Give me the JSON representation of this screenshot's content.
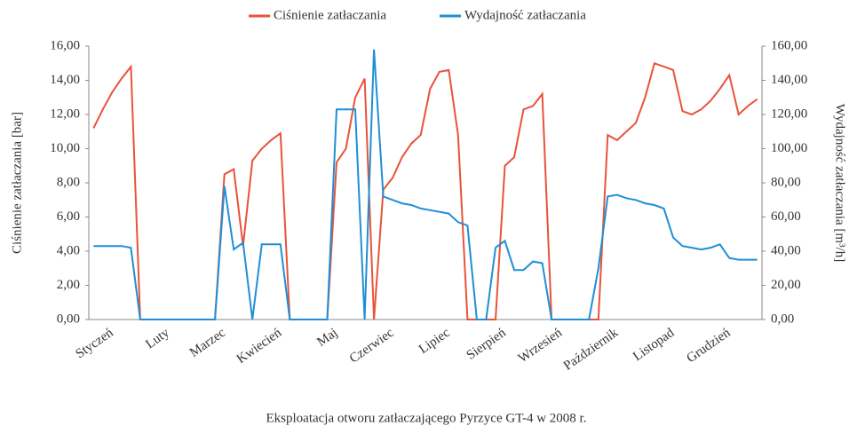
{
  "chart_data": {
    "type": "line",
    "xlabel": "Eksploatacja otworu zatłaczającego Pyrzyce GT-4 w 2008 r.",
    "ylabel": "Ciśnienie zatłaczania [bar]",
    "y2label": "Wydajność zatłaczania [m³/h]",
    "categories": [
      null,
      null,
      "Styczeń",
      null,
      null,
      null,
      null,
      null,
      "Luty",
      null,
      null,
      null,
      null,
      null,
      "Marzec",
      null,
      null,
      null,
      null,
      null,
      "Kwiecień",
      null,
      null,
      null,
      null,
      null,
      "Maj",
      null,
      null,
      null,
      null,
      null,
      "Czerwiec",
      null,
      null,
      null,
      null,
      null,
      "Lipiec",
      null,
      null,
      null,
      null,
      null,
      "Sierpień",
      null,
      null,
      null,
      null,
      null,
      "Wrzesień",
      null,
      null,
      null,
      null,
      null,
      "Październik",
      null,
      null,
      null,
      null,
      null,
      "Listopad",
      null,
      null,
      null,
      null,
      null,
      "Grudzień",
      null,
      null,
      null
    ],
    "series": [
      {
        "name": "Ciśnienie zatłaczania",
        "color": "#e8533a",
        "values": [
          11.2,
          12.3,
          13.3,
          14.1,
          14.8,
          0,
          0,
          0,
          0,
          0,
          0,
          0,
          0,
          0,
          8.5,
          8.8,
          4.3,
          9.3,
          10.0,
          10.5,
          10.9,
          0,
          0,
          0,
          0,
          0,
          9.2,
          10.0,
          13.0,
          14.1,
          0,
          7.6,
          8.3,
          9.5,
          10.3,
          10.8,
          13.5,
          14.5,
          14.6,
          10.8,
          0,
          0,
          0,
          0,
          9.0,
          9.5,
          12.3,
          12.5,
          13.2,
          0,
          0,
          0,
          0,
          0,
          0,
          10.8,
          10.5,
          11.0,
          11.5,
          13.0,
          15.0,
          14.8,
          14.6,
          12.2,
          12.0,
          12.3,
          12.8,
          13.5,
          14.3,
          12.0,
          12.5,
          12.9
        ]
      },
      {
        "name": "Wydajność zatłaczania",
        "color": "#1f8fd6",
        "axis": "y2",
        "values": [
          43,
          43,
          43,
          43,
          42,
          0,
          0,
          0,
          0,
          0,
          0,
          0,
          0,
          0,
          78,
          41,
          45,
          0,
          44,
          44,
          44,
          0,
          0,
          0,
          0,
          0,
          123,
          123,
          123,
          0,
          158,
          72,
          70,
          68,
          67,
          65,
          64,
          63,
          62,
          57,
          55,
          0,
          0,
          42,
          46,
          29,
          29,
          34,
          33,
          0,
          0,
          0,
          0,
          0,
          30,
          72,
          73,
          71,
          70,
          68,
          67,
          65,
          48,
          43,
          42,
          41,
          42,
          44,
          36,
          35,
          35,
          35
        ]
      }
    ],
    "ylim": [
      0,
      16
    ],
    "yticks": [
      {
        "value": 0,
        "label": "0,00"
      },
      {
        "value": 2,
        "label": "2,00"
      },
      {
        "value": 4,
        "label": "4,00"
      },
      {
        "value": 6,
        "label": "6,00"
      },
      {
        "value": 8,
        "label": "8,00"
      },
      {
        "value": 10,
        "label": "10,00"
      },
      {
        "value": 12,
        "label": "12,00"
      },
      {
        "value": 14,
        "label": "14,00"
      },
      {
        "value": 16,
        "label": "16,00"
      }
    ],
    "y2lim": [
      0,
      160
    ],
    "y2ticks": [
      {
        "value": 0,
        "label": "0,00"
      },
      {
        "value": 20,
        "label": "20,00"
      },
      {
        "value": 40,
        "label": "40,00"
      },
      {
        "value": 60,
        "label": "60,00"
      },
      {
        "value": 80,
        "label": "80,00"
      },
      {
        "value": 100,
        "label": "100,00"
      },
      {
        "value": 120,
        "label": "120,00"
      },
      {
        "value": 140,
        "label": "140,00"
      },
      {
        "value": 160,
        "label": "160,00"
      }
    ],
    "legend": "top"
  }
}
